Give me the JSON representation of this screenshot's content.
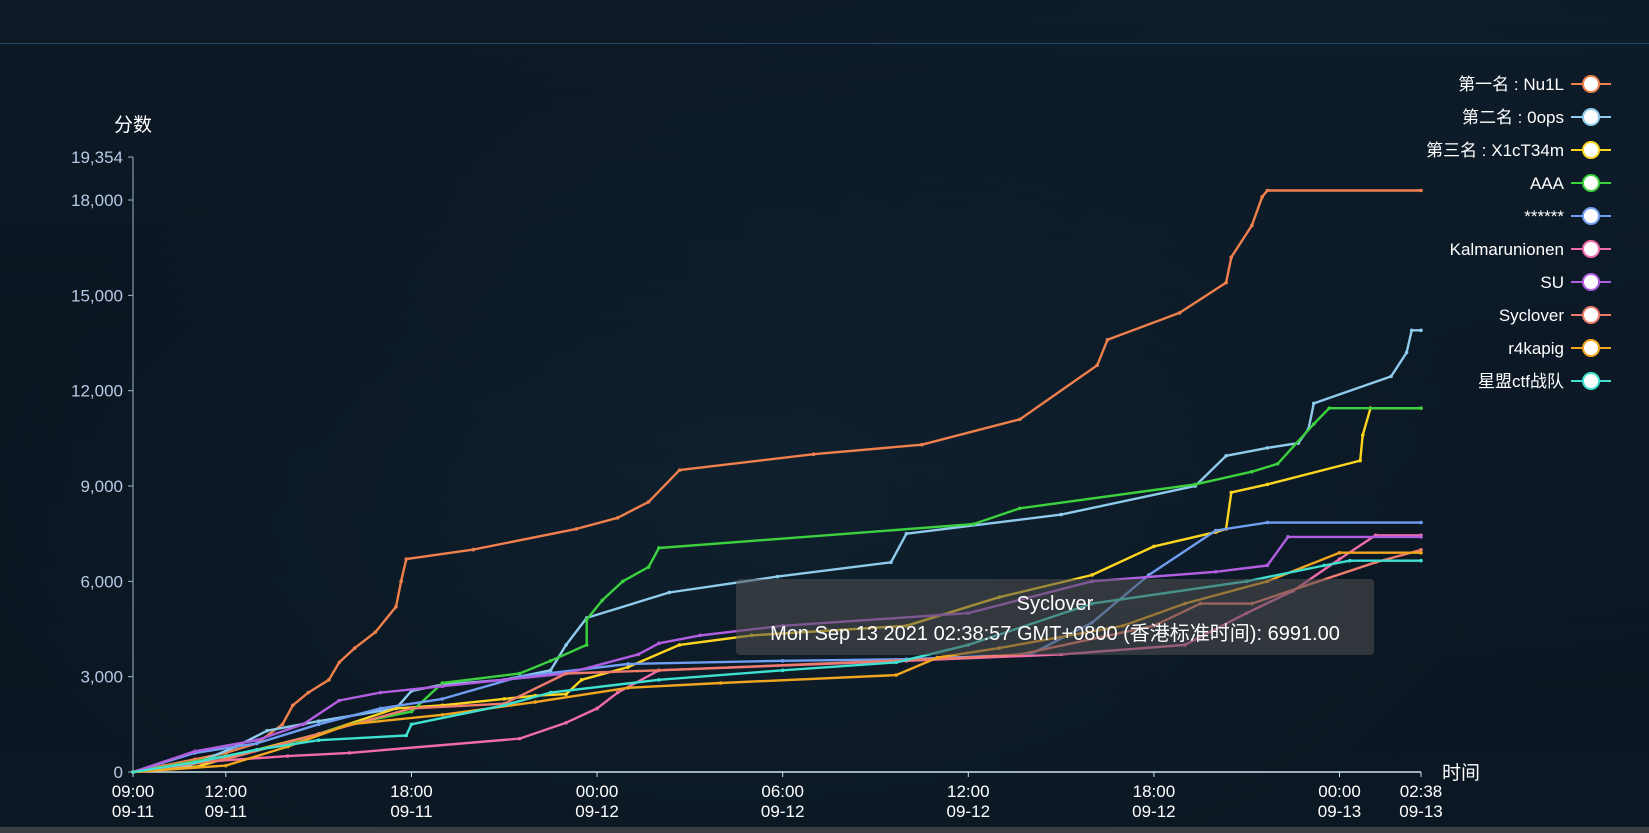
{
  "chart_data": {
    "type": "line",
    "ylabel": "分数",
    "xlabel": "时间",
    "ylim": [
      0,
      19354
    ],
    "y_ticks": [
      {
        "value": 0,
        "label": "0"
      },
      {
        "value": 3000,
        "label": "3,000"
      },
      {
        "value": 6000,
        "label": "6,000"
      },
      {
        "value": 9000,
        "label": "9,000"
      },
      {
        "value": 12000,
        "label": "12,000"
      },
      {
        "value": 15000,
        "label": "15,000"
      },
      {
        "value": 18000,
        "label": "18,000"
      },
      {
        "value": 19354,
        "label": "19,354"
      }
    ],
    "x_range": [
      "2021-09-11 09:00",
      "2021-09-13 02:38"
    ],
    "x_ticks": [
      {
        "time": "2021-09-11 09:00",
        "label_time": "09:00",
        "label_date": "09-11"
      },
      {
        "time": "2021-09-11 12:00",
        "label_time": "12:00",
        "label_date": "09-11"
      },
      {
        "time": "2021-09-11 18:00",
        "label_time": "18:00",
        "label_date": "09-11"
      },
      {
        "time": "2021-09-12 00:00",
        "label_time": "00:00",
        "label_date": "09-12"
      },
      {
        "time": "2021-09-12 06:00",
        "label_time": "06:00",
        "label_date": "09-12"
      },
      {
        "time": "2021-09-12 12:00",
        "label_time": "12:00",
        "label_date": "09-12"
      },
      {
        "time": "2021-09-12 18:00",
        "label_time": "18:00",
        "label_date": "09-12"
      },
      {
        "time": "2021-09-13 00:00",
        "label_time": "00:00",
        "label_date": "09-13"
      },
      {
        "time": "2021-09-13 02:38",
        "label_time": "02:38",
        "label_date": "09-13"
      }
    ],
    "grid": false,
    "legend_position": "right",
    "series": [
      {
        "name": "第一名 : Nu1L",
        "color": "#f0804c",
        "points": [
          [
            "2021-09-11 09:00",
            0
          ],
          [
            "2021-09-11 10:00",
            200
          ],
          [
            "2021-09-11 11:00",
            400
          ],
          [
            "2021-09-11 12:00",
            600
          ],
          [
            "2021-09-11 13:00",
            900
          ],
          [
            "2021-09-11 13:50",
            1500
          ],
          [
            "2021-09-11 14:10",
            2100
          ],
          [
            "2021-09-11 14:40",
            2500
          ],
          [
            "2021-09-11 15:20",
            2900
          ],
          [
            "2021-09-11 15:40",
            3450
          ],
          [
            "2021-09-11 16:10",
            3900
          ],
          [
            "2021-09-11 16:50",
            4400
          ],
          [
            "2021-09-11 17:30",
            5200
          ],
          [
            "2021-09-11 17:40",
            6000
          ],
          [
            "2021-09-11 17:50",
            6700
          ],
          [
            "2021-09-11 20:00",
            7000
          ],
          [
            "2021-09-11 23:20",
            7650
          ],
          [
            "2021-09-12 00:40",
            8000
          ],
          [
            "2021-09-12 01:40",
            8500
          ],
          [
            "2021-09-12 02:40",
            9500
          ],
          [
            "2021-09-12 07:00",
            10000
          ],
          [
            "2021-09-12 10:30",
            10300
          ],
          [
            "2021-09-12 13:40",
            11100
          ],
          [
            "2021-09-12 16:10",
            12800
          ],
          [
            "2021-09-12 16:30",
            13600
          ],
          [
            "2021-09-12 18:50",
            14450
          ],
          [
            "2021-09-12 20:20",
            15400
          ],
          [
            "2021-09-12 20:30",
            16200
          ],
          [
            "2021-09-12 21:10",
            17200
          ],
          [
            "2021-09-12 21:30",
            18100
          ],
          [
            "2021-09-12 21:40",
            18300
          ],
          [
            "2021-09-13 02:38",
            18300
          ]
        ]
      },
      {
        "name": "第二名 : 0ops",
        "color": "#8fcbec",
        "points": [
          [
            "2021-09-11 09:00",
            0
          ],
          [
            "2021-09-11 10:50",
            200
          ],
          [
            "2021-09-11 12:20",
            800
          ],
          [
            "2021-09-11 13:20",
            1300
          ],
          [
            "2021-09-11 15:00",
            1600
          ],
          [
            "2021-09-11 17:30",
            2000
          ],
          [
            "2021-09-11 18:00",
            2550
          ],
          [
            "2021-09-11 19:00",
            2750
          ],
          [
            "2021-09-11 21:00",
            2900
          ],
          [
            "2021-09-11 22:30",
            3200
          ],
          [
            "2021-09-11 23:00",
            4000
          ],
          [
            "2021-09-11 23:40",
            4850
          ],
          [
            "2021-09-12 02:20",
            5650
          ],
          [
            "2021-09-12 05:50",
            6150
          ],
          [
            "2021-09-12 09:30",
            6600
          ],
          [
            "2021-09-12 10:00",
            7500
          ],
          [
            "2021-09-12 15:00",
            8100
          ],
          [
            "2021-09-12 19:20",
            9000
          ],
          [
            "2021-09-12 20:20",
            9950
          ],
          [
            "2021-09-12 21:40",
            10200
          ],
          [
            "2021-09-12 22:40",
            10350
          ],
          [
            "2021-09-12 23:00",
            10800
          ],
          [
            "2021-09-12 23:10",
            11600
          ],
          [
            "2021-09-13 01:40",
            12450
          ],
          [
            "2021-09-13 02:10",
            13200
          ],
          [
            "2021-09-13 02:20",
            13900
          ],
          [
            "2021-09-13 02:38",
            13900
          ]
        ]
      },
      {
        "name": "第三名 : X1cT34m",
        "color": "#ffd61f",
        "points": [
          [
            "2021-09-11 09:00",
            0
          ],
          [
            "2021-09-11 11:00",
            150
          ],
          [
            "2021-09-11 13:00",
            700
          ],
          [
            "2021-09-11 15:00",
            1200
          ],
          [
            "2021-09-11 17:30",
            2000
          ],
          [
            "2021-09-11 19:00",
            2100
          ],
          [
            "2021-09-11 21:00",
            2300
          ],
          [
            "2021-09-11 22:00",
            2400
          ],
          [
            "2021-09-11 23:00",
            2450
          ],
          [
            "2021-09-11 23:30",
            2900
          ],
          [
            "2021-09-12 01:00",
            3300
          ],
          [
            "2021-09-12 02:40",
            4000
          ],
          [
            "2021-09-12 05:00",
            4300
          ],
          [
            "2021-09-12 10:00",
            4600
          ],
          [
            "2021-09-12 13:00",
            5500
          ],
          [
            "2021-09-12 16:00",
            6200
          ],
          [
            "2021-09-12 18:00",
            7100
          ],
          [
            "2021-09-12 20:00",
            7550
          ],
          [
            "2021-09-12 20:20",
            7650
          ],
          [
            "2021-09-12 20:30",
            8800
          ],
          [
            "2021-09-12 21:40",
            9050
          ],
          [
            "2021-09-13 00:40",
            9800
          ],
          [
            "2021-09-13 00:45",
            10600
          ],
          [
            "2021-09-13 01:00",
            11450
          ],
          [
            "2021-09-13 02:38",
            11450
          ]
        ]
      },
      {
        "name": "AAA",
        "color": "#3cd13e",
        "points": [
          [
            "2021-09-11 09:00",
            0
          ],
          [
            "2021-09-11 12:00",
            500
          ],
          [
            "2021-09-11 14:00",
            900
          ],
          [
            "2021-09-11 16:00",
            1500
          ],
          [
            "2021-09-11 18:00",
            1900
          ],
          [
            "2021-09-11 19:00",
            2800
          ],
          [
            "2021-09-11 21:30",
            3100
          ],
          [
            "2021-09-11 22:30",
            3500
          ],
          [
            "2021-09-11 23:40",
            4000
          ],
          [
            "2021-09-11 23:40",
            4800
          ],
          [
            "2021-09-12 00:10",
            5400
          ],
          [
            "2021-09-12 00:50",
            6000
          ],
          [
            "2021-09-12 01:40",
            6450
          ],
          [
            "2021-09-12 02:00",
            7050
          ],
          [
            "2021-09-12 12:10",
            7800
          ],
          [
            "2021-09-12 13:40",
            8300
          ],
          [
            "2021-09-12 19:20",
            9050
          ],
          [
            "2021-09-12 21:10",
            9450
          ],
          [
            "2021-09-12 22:00",
            9700
          ],
          [
            "2021-09-12 23:10",
            10950
          ],
          [
            "2021-09-12 23:40",
            11450
          ],
          [
            "2021-09-13 02:38",
            11450
          ]
        ]
      },
      {
        "name": "******",
        "color": "#6f9ef2",
        "points": [
          [
            "2021-09-11 09:00",
            0
          ],
          [
            "2021-09-11 11:00",
            600
          ],
          [
            "2021-09-11 13:00",
            900
          ],
          [
            "2021-09-11 15:00",
            1500
          ],
          [
            "2021-09-11 17:00",
            2000
          ],
          [
            "2021-09-11 19:00",
            2300
          ],
          [
            "2021-09-11 21:30",
            3000
          ],
          [
            "2021-09-12 01:00",
            3400
          ],
          [
            "2021-09-12 06:00",
            3500
          ],
          [
            "2021-09-12 10:00",
            3550
          ],
          [
            "2021-09-12 14:00",
            3700
          ],
          [
            "2021-09-12 16:00",
            4700
          ],
          [
            "2021-09-12 17:50",
            6200
          ],
          [
            "2021-09-12 20:00",
            7600
          ],
          [
            "2021-09-12 21:40",
            7850
          ],
          [
            "2021-09-13 02:38",
            7850
          ]
        ]
      },
      {
        "name": "Kalmarunionen",
        "color": "#f06ba8",
        "points": [
          [
            "2021-09-11 09:00",
            0
          ],
          [
            "2021-09-11 11:00",
            300
          ],
          [
            "2021-09-11 14:00",
            500
          ],
          [
            "2021-09-11 16:00",
            600
          ],
          [
            "2021-09-11 21:30",
            1050
          ],
          [
            "2021-09-11 23:00",
            1550
          ],
          [
            "2021-09-12 00:00",
            2000
          ],
          [
            "2021-09-12 00:40",
            2500
          ],
          [
            "2021-09-12 02:00",
            3200
          ],
          [
            "2021-09-12 10:00",
            3500
          ],
          [
            "2021-09-12 15:00",
            3700
          ],
          [
            "2021-09-12 19:00",
            4000
          ],
          [
            "2021-09-12 21:00",
            5000
          ],
          [
            "2021-09-12 22:30",
            5700
          ],
          [
            "2021-09-13 00:00",
            6700
          ],
          [
            "2021-09-13 01:10",
            7450
          ],
          [
            "2021-09-13 02:38",
            7450
          ]
        ]
      },
      {
        "name": "SU",
        "color": "#b15fe0",
        "points": [
          [
            "2021-09-11 09:00",
            0
          ],
          [
            "2021-09-11 11:00",
            650
          ],
          [
            "2021-09-11 13:00",
            1000
          ],
          [
            "2021-09-11 14:30",
            1500
          ],
          [
            "2021-09-11 15:40",
            2250
          ],
          [
            "2021-09-11 17:00",
            2500
          ],
          [
            "2021-09-11 19:00",
            2700
          ],
          [
            "2021-09-11 21:00",
            2900
          ],
          [
            "2021-09-11 23:00",
            3100
          ],
          [
            "2021-09-12 01:20",
            3700
          ],
          [
            "2021-09-12 02:00",
            4050
          ],
          [
            "2021-09-12 03:20",
            4300
          ],
          [
            "2021-09-12 06:00",
            4600
          ],
          [
            "2021-09-12 12:00",
            5000
          ],
          [
            "2021-09-12 16:00",
            6000
          ],
          [
            "2021-09-12 20:00",
            6300
          ],
          [
            "2021-09-12 21:40",
            6500
          ],
          [
            "2021-09-12 22:20",
            7400
          ],
          [
            "2021-09-13 02:38",
            7400
          ]
        ]
      },
      {
        "name": "Syclover",
        "color": "#ee7b6b",
        "points": [
          [
            "2021-09-11 09:00",
            0
          ],
          [
            "2021-09-11 12:00",
            400
          ],
          [
            "2021-09-11 15:00",
            1200
          ],
          [
            "2021-09-11 18:00",
            2000
          ],
          [
            "2021-09-11 21:00",
            2150
          ],
          [
            "2021-09-11 23:00",
            3100
          ],
          [
            "2021-09-12 02:00",
            3200
          ],
          [
            "2021-09-12 12:00",
            3600
          ],
          [
            "2021-09-12 13:40",
            3700
          ],
          [
            "2021-09-12 18:00",
            4600
          ],
          [
            "2021-09-12 19:30",
            5300
          ],
          [
            "2021-09-12 21:10",
            5300
          ],
          [
            "2021-09-13 01:10",
            6600
          ],
          [
            "2021-09-13 02:38",
            6991
          ]
        ]
      },
      {
        "name": "r4kapig",
        "color": "#f2a51f",
        "points": [
          [
            "2021-09-11 09:00",
            0
          ],
          [
            "2021-09-11 12:00",
            200
          ],
          [
            "2021-09-11 14:00",
            800
          ],
          [
            "2021-09-11 16:00",
            1500
          ],
          [
            "2021-09-11 19:00",
            1800
          ],
          [
            "2021-09-11 22:00",
            2200
          ],
          [
            "2021-09-12 01:00",
            2650
          ],
          [
            "2021-09-12 04:00",
            2800
          ],
          [
            "2021-09-12 09:40",
            3050
          ],
          [
            "2021-09-12 11:00",
            3600
          ],
          [
            "2021-09-12 13:00",
            3900
          ],
          [
            "2021-09-12 17:00",
            4600
          ],
          [
            "2021-09-12 19:00",
            5300
          ],
          [
            "2021-09-12 21:40",
            6000
          ],
          [
            "2021-09-13 00:00",
            6900
          ],
          [
            "2021-09-13 02:38",
            6900
          ]
        ]
      },
      {
        "name": "星盟ctf战队",
        "color": "#3fe0d0",
        "points": [
          [
            "2021-09-11 09:00",
            0
          ],
          [
            "2021-09-11 11:00",
            300
          ],
          [
            "2021-09-11 13:00",
            700
          ],
          [
            "2021-09-11 15:00",
            1000
          ],
          [
            "2021-09-11 17:50",
            1150
          ],
          [
            "2021-09-11 18:00",
            1500
          ],
          [
            "2021-09-11 21:00",
            2100
          ],
          [
            "2021-09-11 22:30",
            2500
          ],
          [
            "2021-09-12 02:00",
            2900
          ],
          [
            "2021-09-12 06:00",
            3200
          ],
          [
            "2021-09-12 09:40",
            3450
          ],
          [
            "2021-09-12 12:00",
            4000
          ],
          [
            "2021-09-12 16:00",
            5300
          ],
          [
            "2021-09-12 21:00",
            6000
          ],
          [
            "2021-09-12 23:30",
            6500
          ],
          [
            "2021-09-13 00:20",
            6650
          ],
          [
            "2021-09-13 02:38",
            6650
          ]
        ]
      }
    ],
    "tooltip": {
      "title": "Syclover",
      "body": "Mon Sep 13 2021 02:38:57 GMT+0800 (香港标准时间): 6991.00"
    }
  }
}
